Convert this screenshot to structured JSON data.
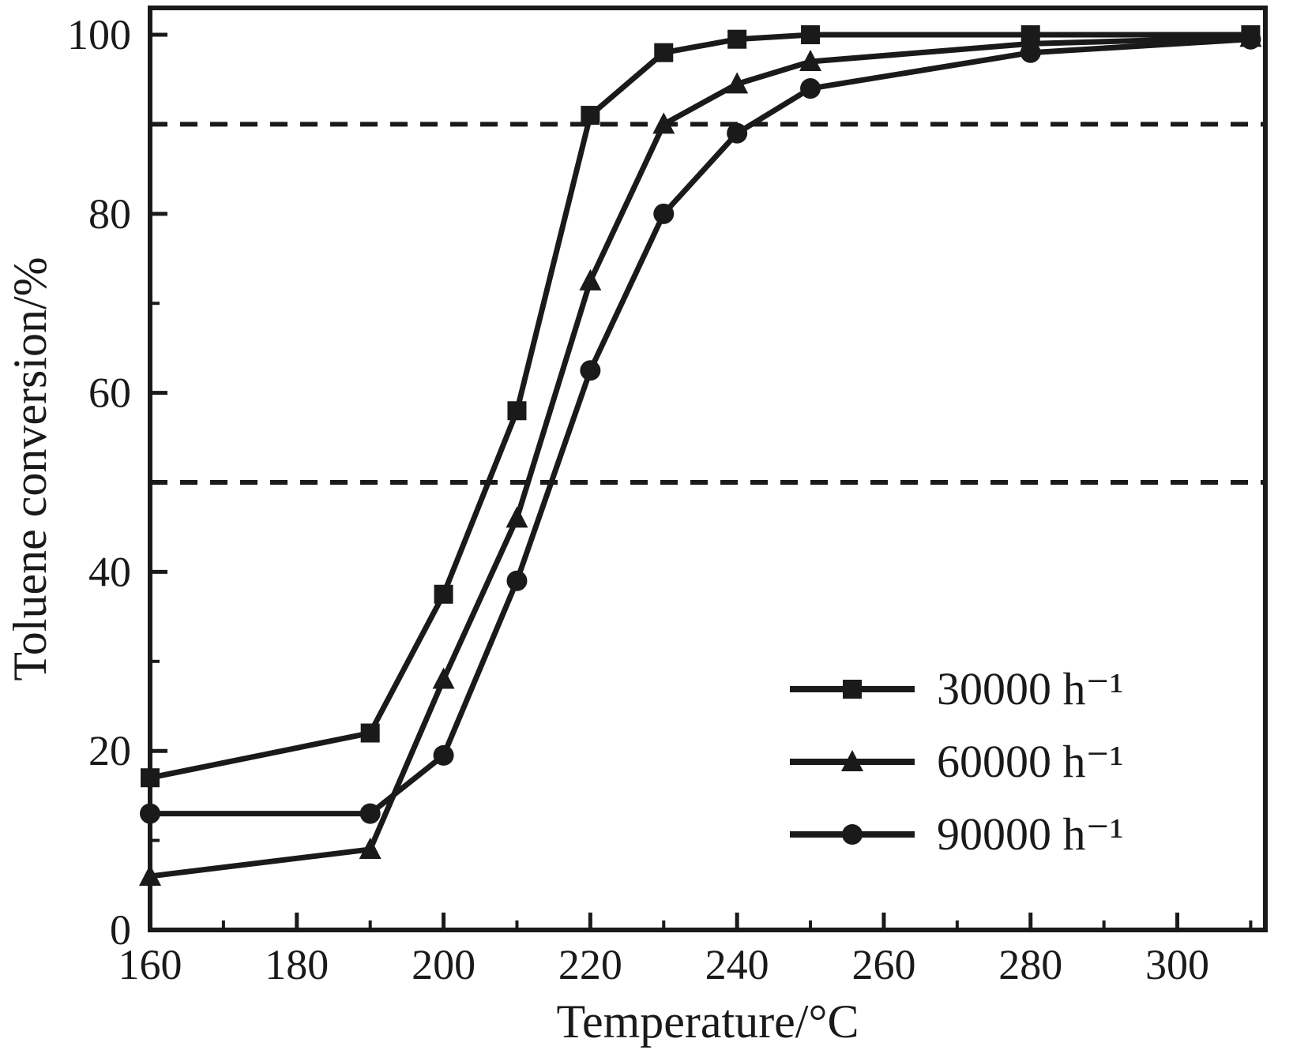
{
  "figure": {
    "background": "#ffffff",
    "ink_color": "#1a1a1a"
  },
  "chart_data": {
    "type": "line",
    "title": "",
    "xlabel": "Temperature/°C",
    "ylabel": "Toluene conversion/%",
    "xlim": [
      160,
      312
    ],
    "ylim": [
      0,
      103
    ],
    "xticks": [
      160,
      180,
      200,
      220,
      240,
      260,
      280,
      300
    ],
    "yticks": [
      0,
      20,
      40,
      60,
      80,
      100
    ],
    "minor_tick_step_x": 10,
    "minor_tick_step_y": 10,
    "grid": false,
    "reference_lines_y": [
      90,
      50
    ],
    "legend_position": "lower right",
    "series": [
      {
        "name": "30000 h⁻¹",
        "marker": "square",
        "x": [
          160,
          190,
          200,
          210,
          220,
          230,
          240,
          250,
          280,
          310
        ],
        "y": [
          17,
          22,
          37.5,
          58,
          91,
          98,
          99.5,
          100,
          100,
          100
        ]
      },
      {
        "name": "60000 h⁻¹",
        "marker": "triangle",
        "x": [
          160,
          190,
          200,
          210,
          220,
          230,
          240,
          250,
          280,
          310
        ],
        "y": [
          6,
          9,
          28,
          46,
          72.5,
          90,
          94.5,
          97,
          99,
          99.7
        ]
      },
      {
        "name": "90000 h⁻¹",
        "marker": "circle",
        "x": [
          160,
          190,
          200,
          210,
          220,
          230,
          240,
          250,
          280,
          310
        ],
        "y": [
          13,
          13,
          19.5,
          39,
          62.5,
          80,
          89,
          94,
          98,
          99.5
        ]
      }
    ]
  }
}
